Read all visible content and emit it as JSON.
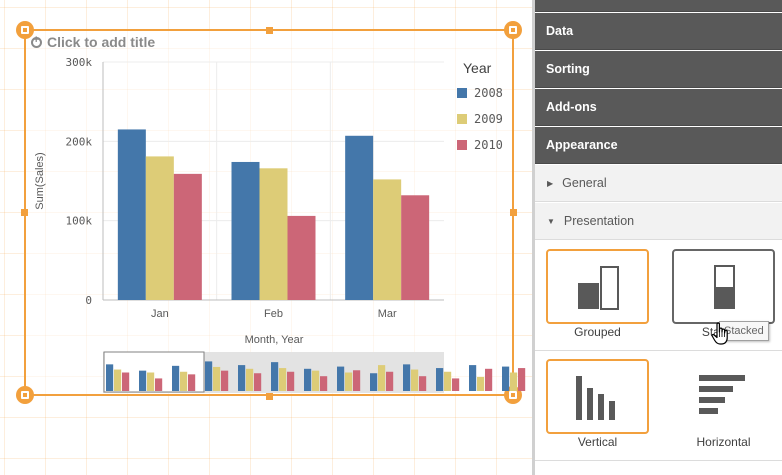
{
  "canvas": {
    "title_placeholder": "Click to add title"
  },
  "chart_data": {
    "type": "bar",
    "categories": [
      "Jan",
      "Feb",
      "Mar"
    ],
    "series": [
      {
        "name": "2008",
        "values": [
          215000,
          174000,
          207000
        ],
        "color": "#4477aa"
      },
      {
        "name": "2009",
        "values": [
          181000,
          166000,
          152000
        ],
        "color": "#ddcc77"
      },
      {
        "name": "2010",
        "values": [
          159000,
          106000,
          132000
        ],
        "color": "#cc6677"
      }
    ],
    "ylim": [
      0,
      300000
    ],
    "yticks": [
      0,
      100000,
      200000,
      300000
    ],
    "ytick_labels": [
      "0",
      "100k",
      "200k",
      "300k"
    ],
    "xlabel": "Month, Year",
    "ylabel": "Sum(Sales)",
    "legend_title": "Year",
    "legend_position": "right",
    "grid": true,
    "mini_chart_values": [
      [
        0.72,
        0.58,
        0.5
      ],
      [
        0.55,
        0.5,
        0.34
      ],
      [
        0.68,
        0.52,
        0.45
      ],
      [
        0.8,
        0.65,
        0.55
      ],
      [
        0.7,
        0.6,
        0.48
      ],
      [
        0.78,
        0.62,
        0.52
      ],
      [
        0.6,
        0.55,
        0.4
      ],
      [
        0.66,
        0.5,
        0.56
      ],
      [
        0.48,
        0.7,
        0.52
      ],
      [
        0.72,
        0.58,
        0.4
      ],
      [
        0.62,
        0.52,
        0.34
      ],
      [
        0.7,
        0.38,
        0.6
      ],
      [
        0.66,
        0.5,
        0.62
      ]
    ]
  },
  "panel": {
    "sections": [
      "Data",
      "Sorting",
      "Add-ons",
      "Appearance"
    ],
    "subsections": [
      "General",
      "Presentation"
    ],
    "grouping_options": [
      {
        "label": "Grouped",
        "state": "selected"
      },
      {
        "label": "Stacked",
        "state": "hovered"
      }
    ],
    "orientation_options": [
      {
        "label": "Vertical",
        "state": "selected"
      },
      {
        "label": "Horizontal",
        "state": "normal"
      }
    ],
    "tooltip": "Stacked"
  },
  "colors": {
    "accent": "#f2a03d",
    "panel_header": "#595959"
  }
}
